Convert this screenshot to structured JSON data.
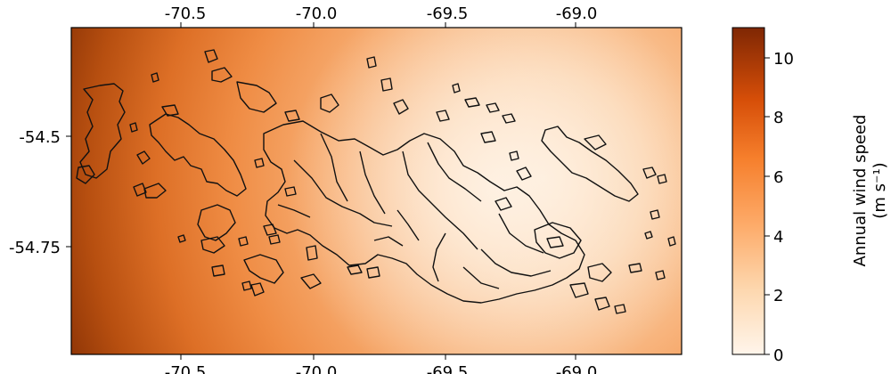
{
  "map": {
    "lon_ticks_top": [
      "-70.5",
      "-70.0",
      "-69.5",
      "-69.0"
    ],
    "lon_ticks_bottom": [
      "-70.5",
      "-70.0",
      "-69.5",
      "-69.0"
    ],
    "lat_ticks": [
      "-54.5",
      "-54.75"
    ],
    "colors": {
      "low": "#fff5eb",
      "mid": "#fd8d3c",
      "high": "#7f2704",
      "coastline": "#111111"
    }
  },
  "colorbar": {
    "label_line1": "Annual wind speed",
    "label_line2": "(m s⁻¹)",
    "ticks": [
      "0",
      "2",
      "4",
      "6",
      "8",
      "10"
    ],
    "range": [
      0,
      11
    ]
  }
}
